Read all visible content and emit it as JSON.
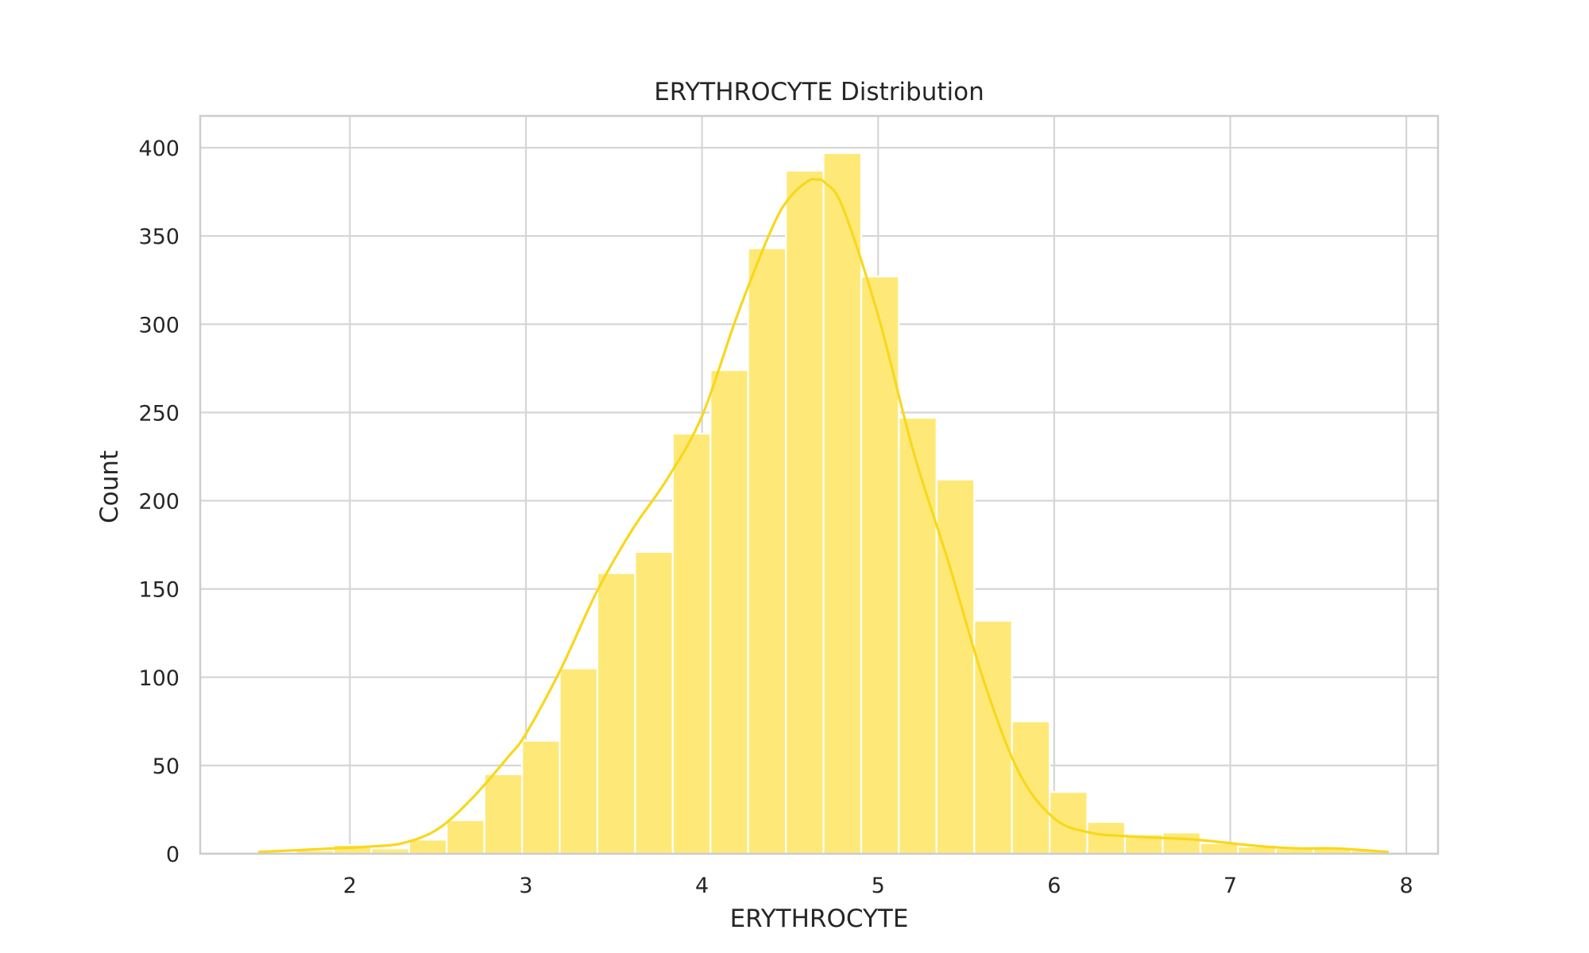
{
  "chart_data": {
    "type": "bar",
    "title": "ERYTHROCYTE Distribution",
    "xlabel": "ERYTHROCYTE",
    "ylabel": "Count",
    "xlim": [
      1.15,
      8.18
    ],
    "ylim": [
      0,
      418
    ],
    "xticks": [
      2,
      3,
      4,
      5,
      6,
      7,
      8
    ],
    "yticks": [
      0,
      50,
      100,
      150,
      200,
      250,
      300,
      350,
      400
    ],
    "grid": true,
    "bin_edges": [
      1.48,
      1.694,
      1.908,
      2.122,
      2.336,
      2.55,
      2.764,
      2.978,
      3.192,
      3.406,
      3.62,
      3.834,
      4.048,
      4.262,
      4.476,
      4.69,
      4.904,
      5.118,
      5.332,
      5.546,
      5.76,
      5.974,
      6.188,
      6.402,
      6.616,
      6.83,
      7.044,
      7.258,
      7.472,
      7.686,
      7.9
    ],
    "counts": [
      1,
      2,
      5,
      3,
      8,
      19,
      45,
      64,
      105,
      159,
      171,
      238,
      274,
      343,
      387,
      397,
      327,
      247,
      212,
      132,
      75,
      35,
      18,
      11,
      12,
      6,
      4,
      3,
      3,
      2
    ],
    "kde": {
      "x": [
        1.48,
        1.7,
        1.9,
        2.1,
        2.3,
        2.5,
        2.7,
        2.9,
        3.0,
        3.2,
        3.4,
        3.6,
        3.8,
        4.0,
        4.2,
        4.4,
        4.5,
        4.6,
        4.65,
        4.7,
        4.8,
        5.0,
        5.2,
        5.4,
        5.6,
        5.8,
        6.0,
        6.2,
        6.4,
        6.6,
        6.8,
        7.0,
        7.2,
        7.4,
        7.6,
        7.9
      ],
      "y": [
        1,
        2,
        3,
        4,
        6,
        14,
        32,
        55,
        68,
        105,
        148,
        183,
        212,
        248,
        305,
        355,
        372,
        381,
        382,
        380,
        366,
        305,
        228,
        165,
        98,
        46,
        20,
        12,
        10,
        9,
        8,
        6,
        4,
        3,
        3,
        1
      ]
    },
    "colors": {
      "bar": "#fee978",
      "kde": "#f9d71c",
      "grid": "#d6d6d6",
      "frame": "#cccccc",
      "text": "#262626"
    }
  }
}
